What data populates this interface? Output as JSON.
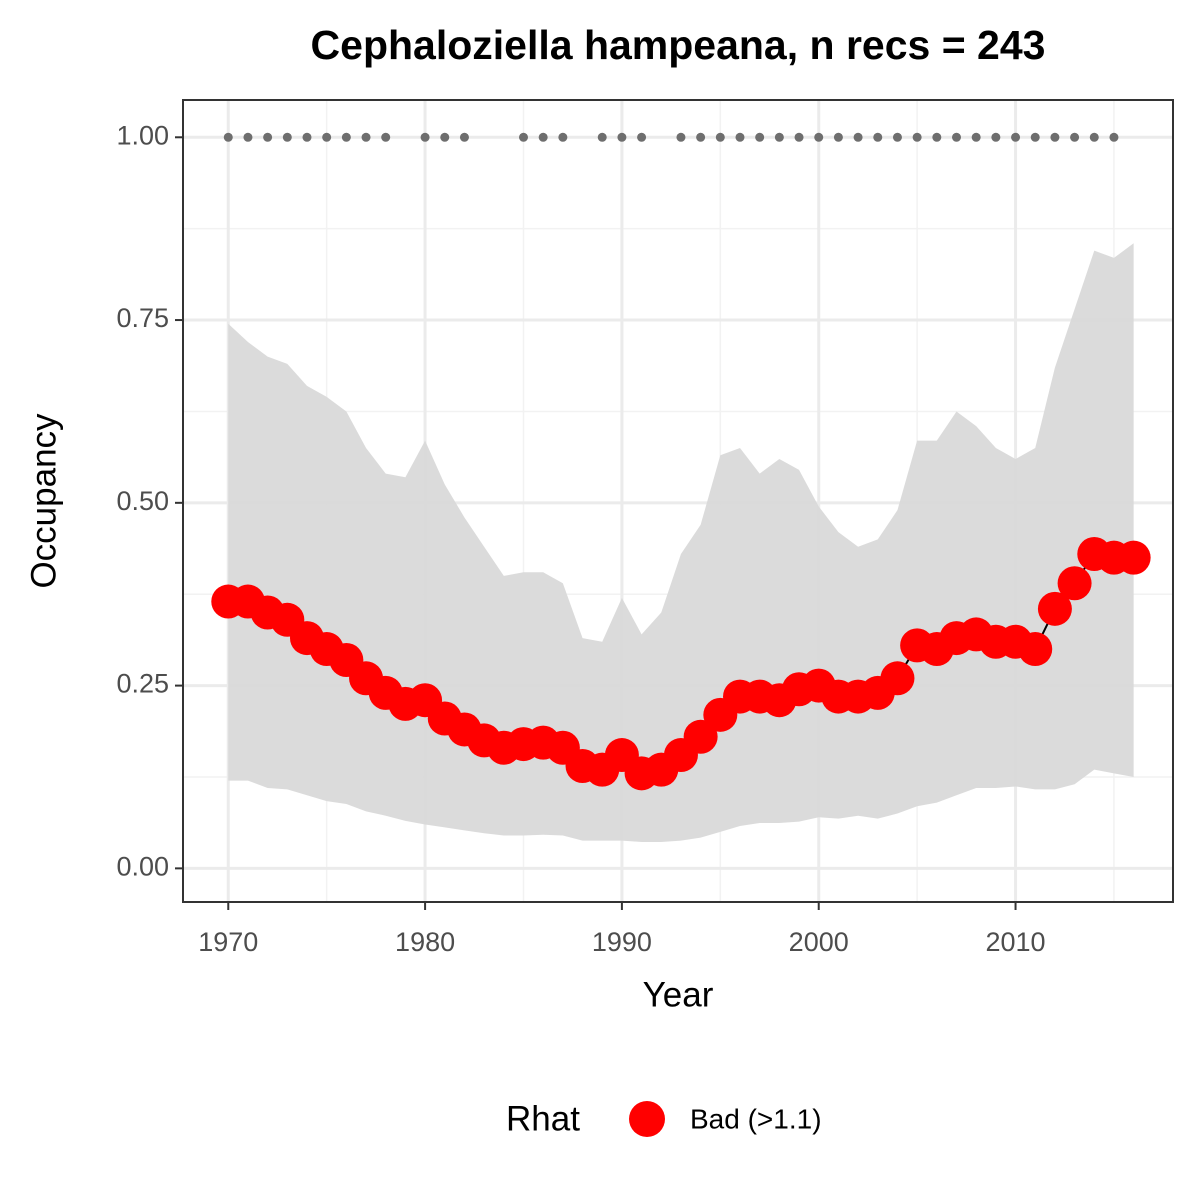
{
  "chart_data": {
    "type": "line",
    "title": "Cephaloziella hampeana, n recs = 243",
    "x_label": "Year",
    "y_label": "Occupancy",
    "legend_title": "Rhat",
    "x": [
      1970,
      1971,
      1972,
      1973,
      1974,
      1975,
      1976,
      1977,
      1978,
      1979,
      1980,
      1981,
      1982,
      1983,
      1984,
      1985,
      1986,
      1987,
      1988,
      1989,
      1990,
      1991,
      1992,
      1993,
      1994,
      1995,
      1996,
      1997,
      1998,
      1999,
      2000,
      2001,
      2002,
      2003,
      2004,
      2005,
      2006,
      2007,
      2008,
      2009,
      2010,
      2011,
      2012,
      2013,
      2014,
      2015,
      2016
    ],
    "series": [
      {
        "name": "Bad (>1.1)",
        "color": "#ff0000",
        "line_color": "#000000",
        "values": [
          0.365,
          0.365,
          0.35,
          0.34,
          0.315,
          0.3,
          0.285,
          0.26,
          0.24,
          0.225,
          0.23,
          0.205,
          0.19,
          0.175,
          0.165,
          0.17,
          0.172,
          0.165,
          0.14,
          0.135,
          0.155,
          0.13,
          0.135,
          0.155,
          0.18,
          0.21,
          0.235,
          0.235,
          0.23,
          0.245,
          0.25,
          0.235,
          0.235,
          0.24,
          0.26,
          0.305,
          0.3,
          0.315,
          0.32,
          0.31,
          0.31,
          0.3,
          0.355,
          0.39,
          0.43,
          0.425,
          0.425
        ]
      }
    ],
    "band": {
      "color": "#d9d9d9",
      "upper": [
        0.745,
        0.72,
        0.7,
        0.69,
        0.66,
        0.645,
        0.625,
        0.575,
        0.54,
        0.535,
        0.585,
        0.525,
        0.48,
        0.44,
        0.4,
        0.405,
        0.405,
        0.39,
        0.315,
        0.31,
        0.37,
        0.32,
        0.35,
        0.43,
        0.47,
        0.565,
        0.575,
        0.54,
        0.56,
        0.545,
        0.495,
        0.46,
        0.44,
        0.45,
        0.49,
        0.585,
        0.585,
        0.625,
        0.605,
        0.575,
        0.56,
        0.575,
        0.685,
        0.765,
        0.845,
        0.835,
        0.855
      ],
      "lower": [
        0.12,
        0.12,
        0.11,
        0.108,
        0.1,
        0.092,
        0.088,
        0.078,
        0.072,
        0.065,
        0.06,
        0.056,
        0.052,
        0.048,
        0.045,
        0.045,
        0.046,
        0.045,
        0.038,
        0.038,
        0.038,
        0.036,
        0.036,
        0.038,
        0.042,
        0.05,
        0.058,
        0.062,
        0.062,
        0.064,
        0.07,
        0.068,
        0.072,
        0.068,
        0.075,
        0.085,
        0.09,
        0.1,
        0.11,
        0.11,
        0.112,
        0.108,
        0.108,
        0.115,
        0.135,
        0.13,
        0.125
      ]
    },
    "records": {
      "color": "#6e6e6e",
      "x": [
        1970,
        1971,
        1972,
        1973,
        1974,
        1975,
        1976,
        1977,
        1978,
        1980,
        1981,
        1982,
        1985,
        1986,
        1987,
        1989,
        1990,
        1991,
        1993,
        1994,
        1995,
        1996,
        1997,
        1998,
        1999,
        2000,
        2001,
        2002,
        2003,
        2004,
        2005,
        2006,
        2007,
        2008,
        2009,
        2010,
        2011,
        2012,
        2013,
        2014,
        2015
      ],
      "values": [
        1,
        1,
        1,
        1,
        1,
        1,
        1,
        1,
        1,
        1,
        1,
        1,
        1,
        1,
        1,
        1,
        1,
        1,
        1,
        1,
        1,
        1,
        1,
        1,
        1,
        1,
        1,
        1,
        1,
        1,
        1,
        1,
        1,
        1,
        1,
        1,
        1,
        1,
        1,
        1,
        1
      ]
    },
    "xlim": [
      1967.7,
      2018.0
    ],
    "xticks": [
      1970,
      1980,
      1990,
      2000,
      2010
    ],
    "x_minor_grid": [
      1975,
      1985,
      1995,
      2005,
      2015
    ],
    "ylim": [
      -0.046,
      1.051
    ],
    "yticks": [
      {
        "value": 0,
        "label": "0.00"
      },
      {
        "value": 0.25,
        "label": "0.25"
      },
      {
        "value": 0.5,
        "label": "0.50"
      },
      {
        "value": 0.75,
        "label": "0.75"
      },
      {
        "value": 1,
        "label": "1.00"
      }
    ],
    "y_minor_grid": [
      0.125,
      0.375,
      0.625,
      0.875
    ],
    "grid": true
  }
}
